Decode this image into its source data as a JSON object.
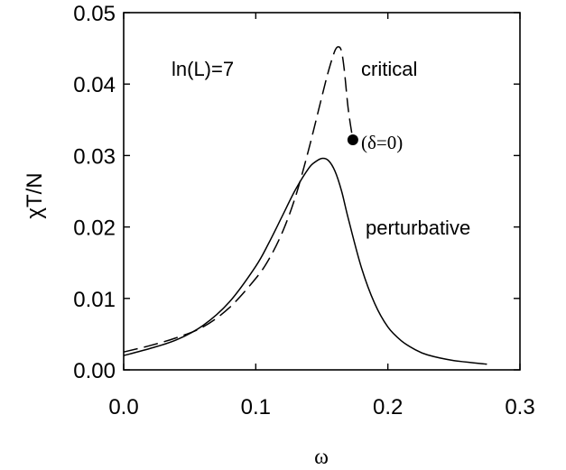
{
  "chart_data": {
    "type": "line",
    "xlabel": "ω",
    "ylabel": "χT/N",
    "xlim": [
      0.0,
      0.3
    ],
    "ylim": [
      0.0,
      0.05
    ],
    "x_ticks": [
      0.0,
      0.1,
      0.2,
      0.3
    ],
    "x_tick_labels": [
      "0.0",
      "0.1",
      "0.2",
      "0.3"
    ],
    "y_ticks": [
      0.0,
      0.01,
      0.02,
      0.03,
      0.04,
      0.05
    ],
    "y_tick_labels": [
      "0.00",
      "0.01",
      "0.02",
      "0.03",
      "0.04",
      "0.05"
    ],
    "grid": false,
    "legend": "none",
    "annotations": {
      "param": "ln(L)=7",
      "critical": "critical",
      "perturbative": "perturbative",
      "endpoint": "(δ=0)"
    },
    "series": [
      {
        "label_ref": "perturbative",
        "style": "solid",
        "color": "#000000",
        "x": [
          0.0,
          0.02,
          0.04,
          0.06,
          0.08,
          0.1,
          0.11,
          0.12,
          0.13,
          0.14,
          0.145,
          0.15,
          0.155,
          0.16,
          0.165,
          0.17,
          0.18,
          0.19,
          0.2,
          0.21,
          0.22,
          0.23,
          0.25,
          0.275
        ],
        "y": [
          0.002,
          0.003,
          0.0042,
          0.0062,
          0.0095,
          0.0145,
          0.0178,
          0.0215,
          0.0252,
          0.0282,
          0.0291,
          0.0296,
          0.0293,
          0.0278,
          0.025,
          0.0212,
          0.0143,
          0.0093,
          0.006,
          0.0041,
          0.0029,
          0.0021,
          0.0013,
          0.0008
        ]
      },
      {
        "label_ref": "critical",
        "style": "dashed",
        "color": "#000000",
        "x": [
          0.0,
          0.02,
          0.04,
          0.06,
          0.08,
          0.1,
          0.11,
          0.12,
          0.13,
          0.14,
          0.15,
          0.155,
          0.16,
          0.163,
          0.165,
          0.167,
          0.17,
          0.1735
        ],
        "y": [
          0.0025,
          0.0034,
          0.0045,
          0.006,
          0.0087,
          0.0128,
          0.0155,
          0.0192,
          0.0242,
          0.0308,
          0.0382,
          0.0418,
          0.0447,
          0.0452,
          0.0445,
          0.042,
          0.0365,
          0.0322
        ]
      }
    ],
    "endpoint_marker": {
      "x": 0.1735,
      "y": 0.0322,
      "color": "#000000"
    }
  }
}
